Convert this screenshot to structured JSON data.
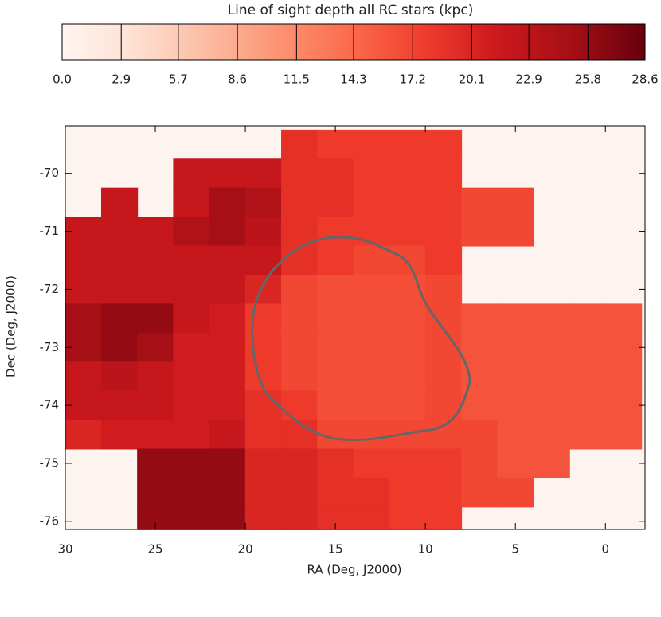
{
  "chart_data": {
    "type": "heatmap",
    "colorbar_title": "Line of sight depth all RC stars (kpc)",
    "cticks": [
      {
        "value": 0,
        "label": "0.0"
      },
      2.9,
      5.7,
      8.6,
      11.5,
      14.3,
      17.2,
      20.1,
      22.9,
      25.8,
      28.6
    ],
    "x_label": "RA (Deg, J2000)",
    "y_label": "Dec (Deg, J2000)",
    "xlim": [
      30,
      -2.2
    ],
    "ylim": [
      -76.14,
      -69.18
    ],
    "xticks": [
      30,
      25,
      20,
      15,
      10,
      5,
      0
    ],
    "yticks": [
      -76,
      -75,
      -74,
      -73,
      -72,
      -71,
      -70
    ],
    "x": [
      29,
      27,
      25,
      23,
      21,
      19,
      17,
      15,
      13,
      11,
      9,
      7,
      5,
      3,
      1,
      -1
    ],
    "y": [
      -69.5,
      -70,
      -70.5,
      -71,
      -71.5,
      -72,
      -72.5,
      -73,
      -73.5,
      -74,
      -74.5,
      -75,
      -75.5,
      -76
    ],
    "z": [
      [
        null,
        null,
        null,
        null,
        null,
        null,
        19,
        18,
        18,
        18,
        18,
        null,
        null,
        null,
        null,
        null
      ],
      [
        null,
        null,
        null,
        22,
        22,
        22,
        19,
        19,
        18,
        18,
        18,
        null,
        null,
        null,
        null,
        null
      ],
      [
        null,
        22,
        null,
        22,
        25,
        24,
        19,
        19,
        18,
        18,
        18,
        17,
        17,
        null,
        null,
        null
      ],
      [
        22,
        22,
        22,
        24,
        25,
        23,
        19,
        18,
        18,
        18,
        18,
        17,
        17,
        null,
        null,
        null
      ],
      [
        22,
        22,
        22,
        22,
        22,
        22,
        19,
        18,
        17,
        17,
        18,
        null,
        null,
        null,
        null,
        null
      ],
      [
        22,
        22,
        22,
        22,
        22,
        20,
        17,
        16.5,
        16.5,
        16.5,
        17,
        null,
        null,
        null,
        null,
        null
      ],
      [
        25,
        26,
        26,
        22,
        21,
        18,
        17,
        16.5,
        16.5,
        16.5,
        17,
        16,
        16,
        16,
        16,
        16
      ],
      [
        25,
        26,
        25,
        21,
        21,
        18,
        17,
        16.5,
        16.5,
        16.5,
        17,
        16,
        16,
        16,
        16,
        16
      ],
      [
        22,
        23,
        22,
        21,
        21,
        18,
        17,
        16.5,
        16.5,
        16.5,
        17,
        16,
        16,
        16,
        16,
        16
      ],
      [
        22,
        22,
        22,
        21,
        21,
        19,
        18,
        16.5,
        16.5,
        16.5,
        17,
        16,
        16,
        16,
        16,
        16
      ],
      [
        20,
        21,
        21,
        21,
        22,
        19,
        19,
        17,
        17,
        17,
        17,
        17,
        16,
        16,
        16,
        16
      ],
      [
        null,
        null,
        26,
        26,
        26,
        20,
        20,
        19,
        18,
        18,
        18,
        17,
        16,
        16,
        null,
        null
      ],
      [
        null,
        null,
        26,
        26,
        26,
        20,
        20,
        19,
        19,
        18,
        18,
        17,
        17,
        null,
        null,
        null
      ],
      [
        null,
        null,
        26,
        26,
        26,
        20,
        20,
        19,
        19,
        18,
        18,
        null,
        null,
        null,
        null,
        null
      ]
    ]
  }
}
